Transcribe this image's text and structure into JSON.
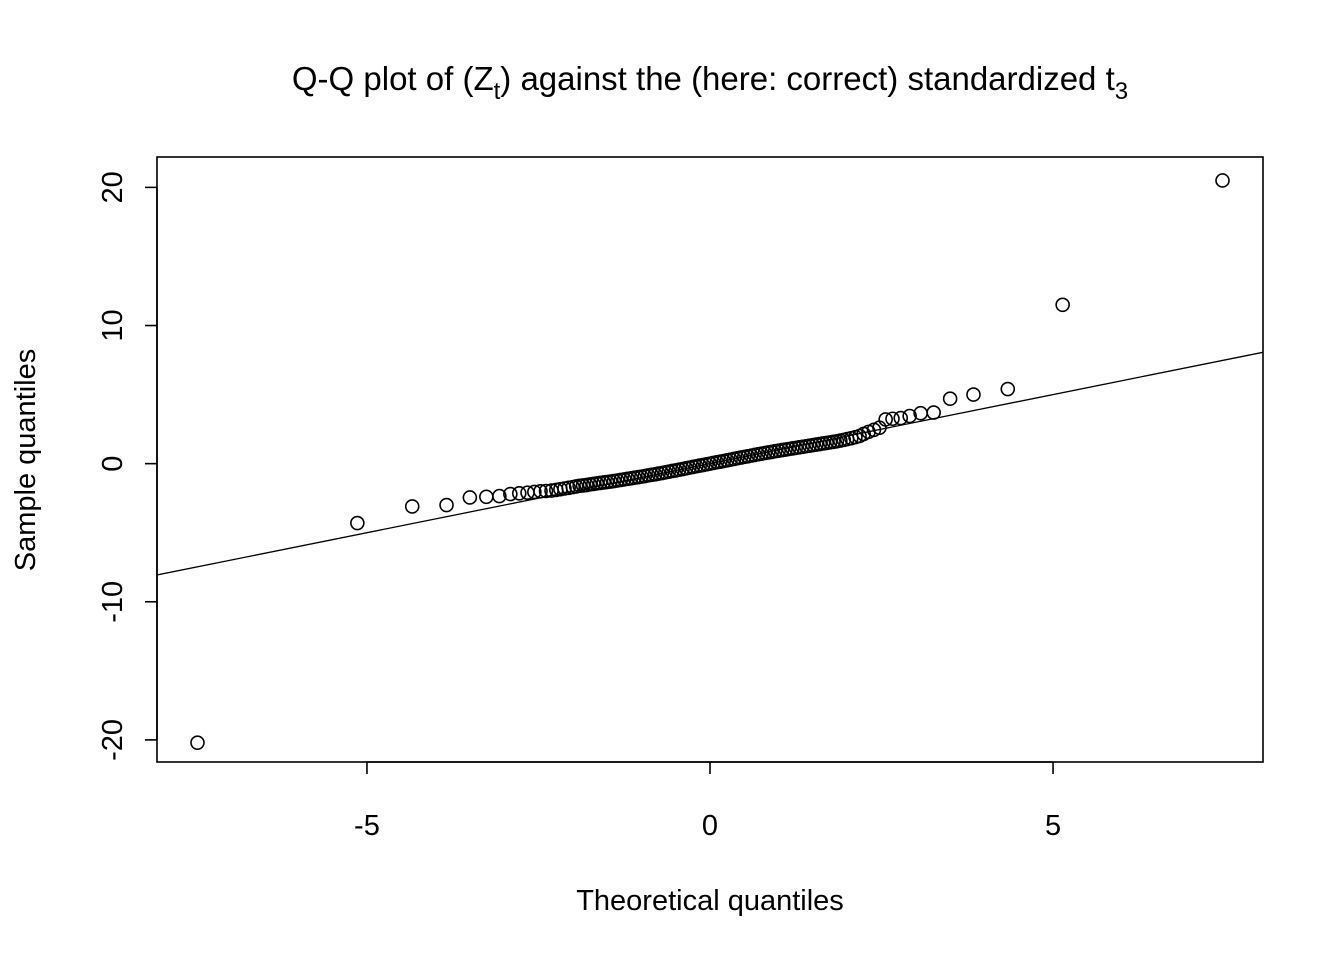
{
  "chart_data": {
    "type": "scatter",
    "title": {
      "prefix": "Q-Q plot of (Z",
      "sub1": "t",
      "middle": ") against the (here: correct) standardized t",
      "sub2": "3"
    },
    "xlabel": "Theoretical quantiles",
    "ylabel": "Sample quantiles",
    "xlim": [
      -8.06,
      8.06
    ],
    "ylim": [
      -21.6,
      22.2
    ],
    "xticks": [
      -5,
      0,
      5
    ],
    "xtick_labels": [
      "-5",
      "0",
      "5"
    ],
    "yticks": [
      -20,
      -10,
      0,
      10,
      20
    ],
    "ytick_labels": [
      "-20",
      "-10",
      "0",
      "10",
      "20"
    ],
    "grid": false,
    "legend": "none",
    "reference_line": {
      "slope": 1,
      "intercept": 0
    },
    "points": [
      [
        -7.47,
        -20.2
      ],
      [
        -5.14,
        -4.3
      ],
      [
        -4.34,
        -3.1
      ],
      [
        -3.84,
        -3.0
      ],
      [
        -3.5,
        -2.45
      ],
      [
        -3.26,
        -2.4
      ],
      [
        -3.07,
        -2.35
      ],
      [
        -2.91,
        -2.2
      ],
      [
        -2.78,
        -2.15
      ],
      [
        -2.66,
        -2.1
      ],
      [
        -2.56,
        -2.05
      ],
      [
        -2.47,
        -2.0
      ],
      [
        -2.39,
        -1.98
      ],
      [
        -2.31,
        -1.95
      ],
      [
        -2.24,
        -1.9
      ],
      [
        -2.18,
        -1.85
      ],
      [
        -2.12,
        -1.8
      ],
      [
        -2.06,
        -1.75
      ],
      [
        -2.0,
        -1.7
      ],
      [
        -1.95,
        -1.65
      ],
      [
        -1.9,
        -1.6
      ],
      [
        -1.85,
        -1.58
      ],
      [
        -1.8,
        -1.55
      ],
      [
        -1.75,
        -1.5
      ],
      [
        -1.7,
        -1.47
      ],
      [
        -1.65,
        -1.43
      ],
      [
        -1.6,
        -1.4
      ],
      [
        -1.55,
        -1.36
      ],
      [
        -1.5,
        -1.33
      ],
      [
        -1.45,
        -1.3
      ],
      [
        -1.4,
        -1.26
      ],
      [
        -1.35,
        -1.22
      ],
      [
        -1.3,
        -1.18
      ],
      [
        -1.25,
        -1.14
      ],
      [
        -1.2,
        -1.1
      ],
      [
        -1.15,
        -1.06
      ],
      [
        -1.1,
        -1.02
      ],
      [
        -1.05,
        -0.98
      ],
      [
        -1.0,
        -0.94
      ],
      [
        -0.95,
        -0.9
      ],
      [
        -0.9,
        -0.85
      ],
      [
        -0.85,
        -0.81
      ],
      [
        -0.8,
        -0.77
      ],
      [
        -0.75,
        -0.72
      ],
      [
        -0.7,
        -0.68
      ],
      [
        -0.65,
        -0.63
      ],
      [
        -0.6,
        -0.58
      ],
      [
        -0.55,
        -0.53
      ],
      [
        -0.5,
        -0.49
      ],
      [
        -0.45,
        -0.44
      ],
      [
        -0.4,
        -0.39
      ],
      [
        -0.35,
        -0.34
      ],
      [
        -0.3,
        -0.29
      ],
      [
        -0.25,
        -0.24
      ],
      [
        -0.2,
        -0.19
      ],
      [
        -0.15,
        -0.14
      ],
      [
        -0.1,
        -0.1
      ],
      [
        -0.05,
        -0.05
      ],
      [
        0.0,
        0.0
      ],
      [
        0.05,
        0.05
      ],
      [
        0.1,
        0.1
      ],
      [
        0.15,
        0.14
      ],
      [
        0.2,
        0.19
      ],
      [
        0.25,
        0.24
      ],
      [
        0.3,
        0.29
      ],
      [
        0.35,
        0.34
      ],
      [
        0.4,
        0.39
      ],
      [
        0.45,
        0.44
      ],
      [
        0.5,
        0.49
      ],
      [
        0.55,
        0.53
      ],
      [
        0.6,
        0.58
      ],
      [
        0.65,
        0.63
      ],
      [
        0.7,
        0.68
      ],
      [
        0.75,
        0.72
      ],
      [
        0.8,
        0.77
      ],
      [
        0.85,
        0.81
      ],
      [
        0.9,
        0.85
      ],
      [
        0.95,
        0.9
      ],
      [
        1.0,
        0.94
      ],
      [
        1.05,
        0.98
      ],
      [
        1.1,
        1.02
      ],
      [
        1.15,
        1.06
      ],
      [
        1.2,
        1.1
      ],
      [
        1.25,
        1.14
      ],
      [
        1.3,
        1.18
      ],
      [
        1.35,
        1.22
      ],
      [
        1.4,
        1.26
      ],
      [
        1.45,
        1.3
      ],
      [
        1.5,
        1.34
      ],
      [
        1.55,
        1.38
      ],
      [
        1.6,
        1.42
      ],
      [
        1.65,
        1.46
      ],
      [
        1.7,
        1.5
      ],
      [
        1.75,
        1.54
      ],
      [
        1.8,
        1.58
      ],
      [
        1.85,
        1.62
      ],
      [
        1.9,
        1.67
      ],
      [
        1.95,
        1.72
      ],
      [
        2.0,
        1.78
      ],
      [
        2.06,
        1.84
      ],
      [
        2.12,
        1.92
      ],
      [
        2.18,
        2.0
      ],
      [
        2.24,
        2.15
      ],
      [
        2.31,
        2.3
      ],
      [
        2.39,
        2.45
      ],
      [
        2.47,
        2.6
      ],
      [
        2.56,
        3.2
      ],
      [
        2.66,
        3.25
      ],
      [
        2.78,
        3.3
      ],
      [
        2.91,
        3.45
      ],
      [
        3.07,
        3.65
      ],
      [
        3.26,
        3.7
      ],
      [
        3.5,
        4.7
      ],
      [
        3.84,
        5.0
      ],
      [
        4.34,
        5.4
      ],
      [
        5.14,
        11.5
      ],
      [
        7.47,
        20.5
      ]
    ]
  }
}
